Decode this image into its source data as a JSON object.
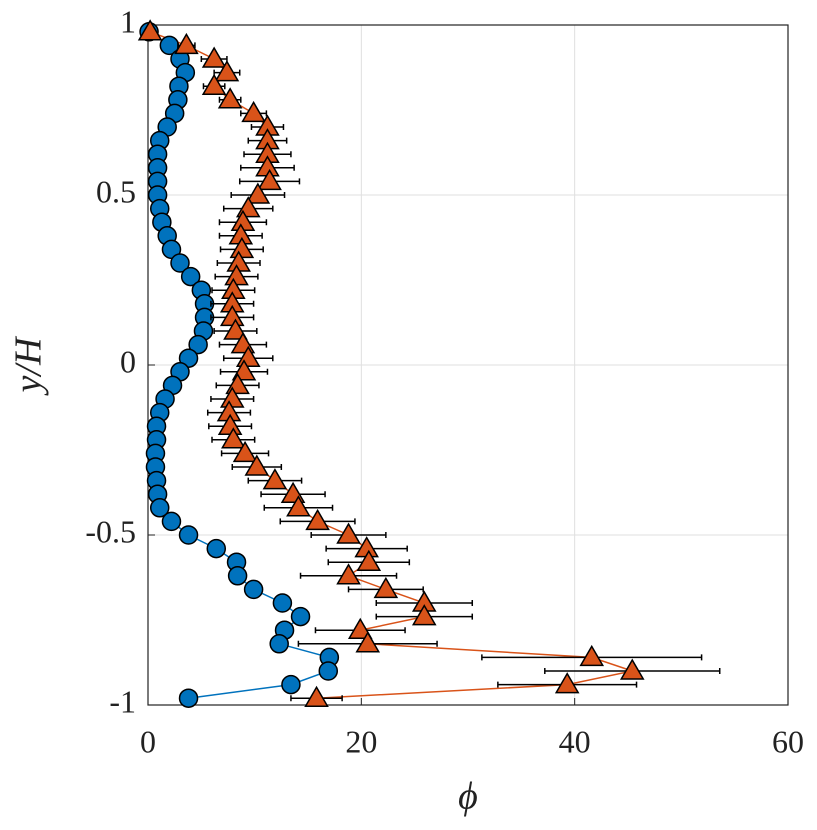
{
  "chart_data": {
    "type": "line",
    "xlabel": "ϕ",
    "ylabel": "y/H",
    "xlim": [
      0,
      60
    ],
    "xticks": [
      0,
      20,
      40,
      60
    ],
    "ylim": [
      -1,
      1
    ],
    "yticks": [
      -1,
      -0.5,
      0,
      0.5,
      1
    ],
    "grid": true,
    "y": [
      0.98,
      0.94,
      0.9,
      0.86,
      0.82,
      0.78,
      0.74,
      0.7,
      0.66,
      0.62,
      0.58,
      0.54,
      0.5,
      0.46,
      0.42,
      0.38,
      0.34,
      0.3,
      0.26,
      0.22,
      0.18,
      0.14,
      0.1,
      0.06,
      0.02,
      -0.02,
      -0.06,
      -0.1,
      -0.14,
      -0.18,
      -0.22,
      -0.26,
      -0.3,
      -0.34,
      -0.38,
      -0.42,
      -0.46,
      -0.5,
      -0.54,
      -0.58,
      -0.62,
      -0.66,
      -0.7,
      -0.74,
      -0.78,
      -0.82,
      -0.86,
      -0.9,
      -0.94,
      -0.98
    ],
    "series": [
      {
        "color": "#0072BD",
        "marker": "circle",
        "x": [
          0.1,
          2.0,
          3.0,
          3.5,
          2.9,
          2.8,
          2.5,
          1.8,
          1.1,
          0.9,
          0.9,
          0.9,
          0.9,
          1.1,
          1.3,
          1.8,
          2.2,
          3.0,
          4.0,
          5.0,
          5.3,
          5.3,
          5.2,
          4.7,
          3.8,
          3.0,
          2.3,
          1.6,
          1.1,
          0.8,
          0.8,
          0.7,
          0.7,
          0.8,
          0.9,
          1.1,
          2.2,
          3.8,
          6.4,
          8.3,
          8.4,
          9.9,
          12.6,
          14.3,
          12.8,
          12.3,
          17.0,
          16.9,
          13.4,
          3.8
        ]
      },
      {
        "color": "#D95319",
        "marker": "triangle",
        "x": [
          0.2,
          3.6,
          6.2,
          7.4,
          6.2,
          7.7,
          9.9,
          11.2,
          11.2,
          11.2,
          11.2,
          11.4,
          10.3,
          9.4,
          8.9,
          8.7,
          8.8,
          8.5,
          8.3,
          8.0,
          7.9,
          7.9,
          8.2,
          8.9,
          9.4,
          9.0,
          8.4,
          7.9,
          7.6,
          7.7,
          8.0,
          9.1,
          10.2,
          11.9,
          13.6,
          14.1,
          15.9,
          18.8,
          20.5,
          20.7,
          18.8,
          22.3,
          25.9,
          25.9,
          19.9,
          20.6,
          41.6,
          45.4,
          39.3,
          15.8
        ],
        "errors": [
          0,
          0.8,
          1.2,
          1.2,
          1,
          1,
          1.2,
          1.5,
          1.8,
          2.2,
          2.5,
          2.8,
          2.5,
          2.3,
          2.2,
          2,
          2,
          2,
          2,
          2,
          2,
          2,
          2,
          2.2,
          2.3,
          2.2,
          2,
          2,
          2,
          2,
          2,
          2.2,
          2.3,
          2.5,
          3,
          3.2,
          3.5,
          3.5,
          3.8,
          3.8,
          4.5,
          3.5,
          4.5,
          4.5,
          4.2,
          6.5,
          10.3,
          8.2,
          6.5,
          2.4
        ]
      }
    ]
  }
}
